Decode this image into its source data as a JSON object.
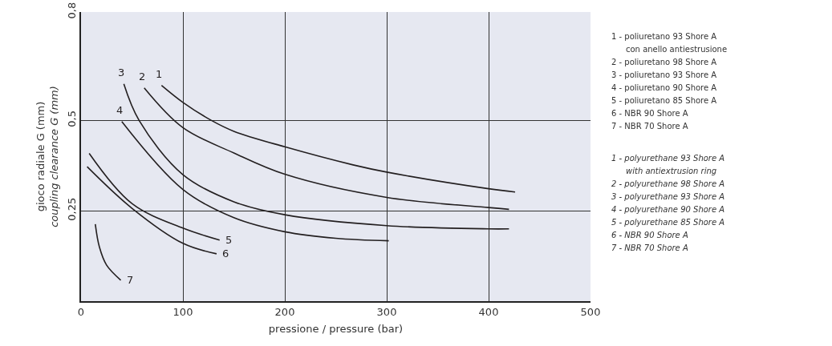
{
  "chart_data": {
    "type": "line",
    "xlabel": "pressione / pressure (bar)",
    "ylabel": "gioco radiale G (mm)\ncoupling clearance G (mm)",
    "xlim": [
      0,
      500
    ],
    "xticks": [
      0,
      100,
      200,
      300,
      400,
      500
    ],
    "ylim": [
      0,
      0.8
    ],
    "yticks": [
      {
        "value": 0.25,
        "label": "0,25"
      },
      {
        "value": 0.5,
        "label": "0,5"
      },
      {
        "value": 0.8,
        "label": "0,8"
      }
    ],
    "grid": true,
    "legend": false,
    "marker": "none",
    "line_style": "solid",
    "series": [
      {
        "name": "1",
        "color": "#231f20",
        "x": [
          79,
          100,
          128,
          150,
          200,
          267,
          300,
          400,
          426
        ],
        "values": [
          0.597,
          0.55,
          0.5,
          0.47,
          0.427,
          0.377,
          0.357,
          0.311,
          0.302
        ]
      },
      {
        "name": "2",
        "color": "#231f20",
        "x": [
          62,
          100,
          150,
          200,
          300,
          400,
          420
        ],
        "values": [
          0.59,
          0.48,
          0.41,
          0.351,
          0.287,
          0.259,
          0.254
        ]
      },
      {
        "name": "3",
        "color": "#231f20",
        "x": [
          42,
          57,
          100,
          150,
          200,
          300,
          400,
          420
        ],
        "values": [
          0.601,
          0.5,
          0.35,
          0.275,
          0.239,
          0.209,
          0.2,
          0.2
        ]
      },
      {
        "name": "4",
        "color": "#231f20",
        "x": [
          40,
          100,
          150,
          200,
          250,
          302
        ],
        "values": [
          0.497,
          0.309,
          0.231,
          0.192,
          0.174,
          0.167
        ]
      },
      {
        "name": "5",
        "color": "#231f20",
        "x": [
          8,
          50,
          100,
          136
        ],
        "values": [
          0.409,
          0.27,
          0.202,
          0.169
        ]
      },
      {
        "name": "6",
        "color": "#231f20",
        "x": [
          6,
          50,
          100,
          133
        ],
        "values": [
          0.372,
          0.257,
          0.16,
          0.131
        ]
      },
      {
        "name": "7",
        "color": "#231f20",
        "x": [
          14,
          18,
          25,
          39
        ],
        "values": [
          0.213,
          0.15,
          0.1,
          0.058
        ]
      }
    ],
    "annotations": [
      "1 - poliuretano 93 Shore A\ncon anello antiestrusione",
      "2 - poliuretano 98 Shore A",
      "3 - poliuretano 93 Shore A",
      "4 - poliuretano 90 Shore A",
      "5 - poliuretano 85 Shore A",
      "6 - NBR 90 Shore A",
      "7 - NBR 70 Shore A",
      "1 - polyurethane 93 Shore A\nwith antiextrusion ring",
      "2 - polyurethane 98 Shore A",
      "3 - polyurethane 93 Shore A",
      "4 - polyurethane 90 Shore A",
      "5 - polyurethane 85 Shore A",
      "6 - NBR 90 Shore A",
      "7 - NBR 70 Shore A"
    ]
  }
}
